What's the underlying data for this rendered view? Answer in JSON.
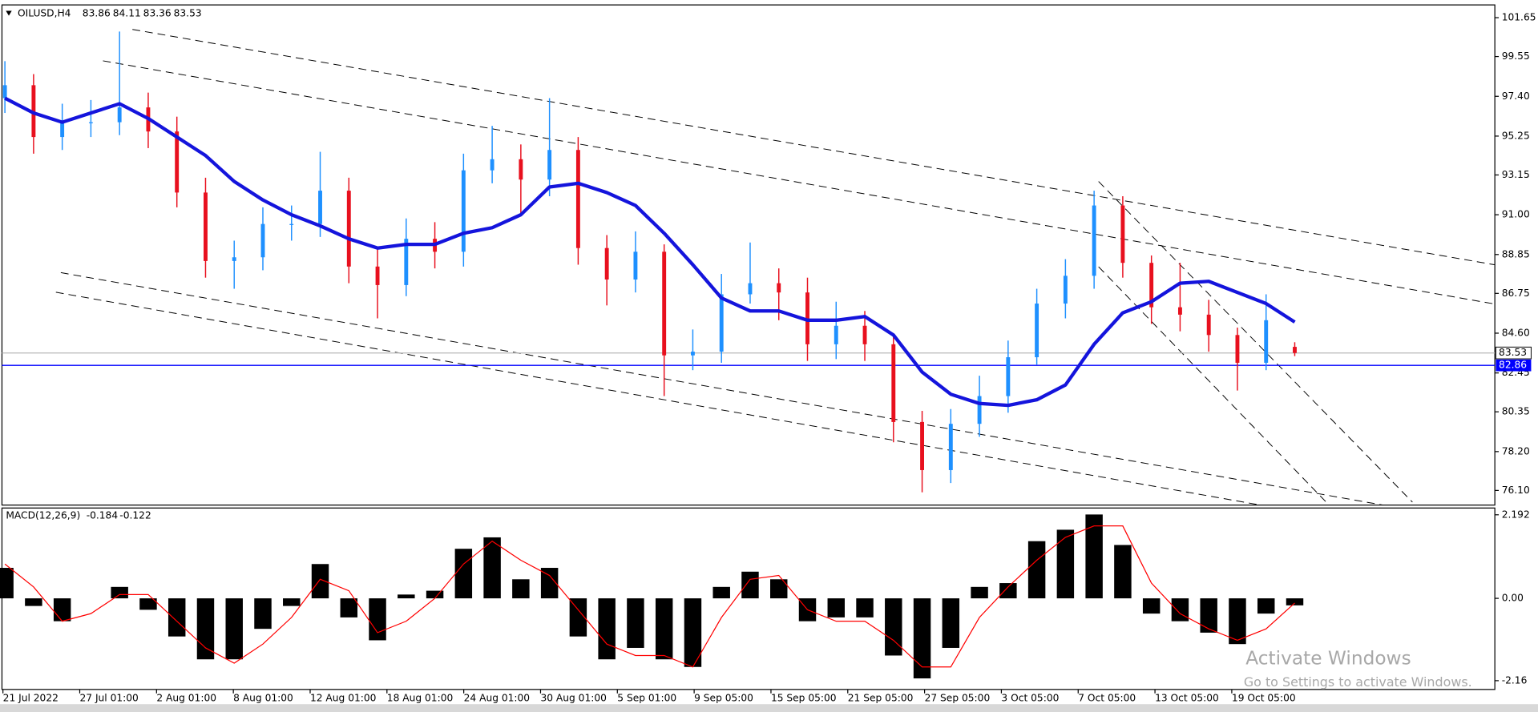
{
  "chart_data": [
    {
      "type": "candlestick",
      "symbol": "OILUSD,H4",
      "open": [
        97.3,
        98.0,
        95.2,
        96.0,
        96.0,
        96.8,
        95.5,
        92.2,
        88.5,
        88.7,
        90.5,
        90.5,
        92.3,
        88.2,
        87.2,
        89.7,
        89.0,
        93.4,
        94.0,
        92.9,
        94.5,
        89.2,
        87.5,
        89.0,
        83.4,
        83.6,
        86.7,
        87.3,
        86.8,
        84.0,
        85.0,
        84.0,
        79.8,
        77.2,
        79.7,
        81.2,
        83.3,
        86.2,
        87.7,
        91.5,
        88.4,
        86.0,
        85.6,
        84.5,
        83.0,
        83.86
      ],
      "high": [
        99.3,
        98.6,
        97.0,
        97.2,
        100.9,
        97.6,
        96.3,
        93.0,
        89.6,
        91.4,
        91.5,
        94.4,
        93.0,
        89.2,
        90.8,
        90.6,
        94.3,
        95.8,
        94.8,
        97.3,
        95.2,
        89.9,
        90.1,
        89.4,
        84.8,
        87.8,
        89.5,
        88.1,
        87.6,
        86.3,
        85.8,
        84.6,
        80.4,
        80.5,
        82.3,
        84.2,
        87.0,
        88.6,
        92.3,
        92.0,
        88.8,
        88.4,
        86.4,
        84.9,
        86.7,
        84.11
      ],
      "low": [
        96.5,
        94.3,
        94.5,
        95.2,
        95.3,
        94.6,
        91.4,
        87.6,
        87.0,
        88.0,
        89.6,
        89.8,
        87.3,
        85.4,
        86.6,
        88.1,
        88.2,
        92.7,
        91.0,
        92.0,
        88.3,
        86.1,
        86.8,
        81.2,
        82.6,
        83.0,
        86.2,
        85.3,
        83.1,
        83.2,
        83.1,
        78.7,
        76.0,
        76.5,
        79.0,
        80.3,
        82.9,
        85.4,
        87.0,
        87.6,
        85.1,
        84.7,
        83.6,
        81.5,
        82.6,
        83.36
      ],
      "close": [
        98.0,
        95.2,
        96.0,
        96.0,
        96.8,
        95.5,
        92.2,
        88.5,
        88.7,
        90.5,
        90.5,
        92.3,
        88.2,
        87.2,
        89.7,
        89.0,
        93.4,
        94.0,
        92.9,
        94.5,
        89.2,
        87.5,
        89.0,
        83.4,
        83.6,
        86.7,
        87.3,
        86.8,
        84.0,
        85.0,
        84.0,
        79.8,
        77.2,
        79.7,
        81.2,
        83.3,
        86.2,
        87.7,
        91.5,
        88.4,
        86.0,
        85.6,
        84.5,
        83.0,
        85.3,
        83.53
      ],
      "up_color": "#1e90ff",
      "down_color": "#e8101e",
      "ma": {
        "color": "#1414dc",
        "values": [
          97.3,
          96.5,
          96.0,
          96.5,
          97.0,
          96.2,
          95.2,
          94.2,
          92.8,
          91.8,
          91.0,
          90.4,
          89.7,
          89.2,
          89.4,
          89.4,
          90.0,
          90.3,
          91.0,
          92.5,
          92.7,
          92.2,
          91.5,
          90.0,
          88.3,
          86.5,
          85.8,
          85.8,
          85.3,
          85.3,
          85.5,
          84.5,
          82.5,
          81.3,
          80.8,
          80.7,
          81.0,
          81.8,
          84.0,
          85.7,
          86.3,
          87.3,
          87.4,
          86.8,
          86.2,
          85.2
        ]
      },
      "hline": {
        "value": 82.86,
        "color": "#0000ff"
      },
      "ylim": [
        75.31,
        102.34
      ],
      "yticks": [
        101.65,
        99.55,
        {
          "value": 97.4,
          "label": "97.40"
        },
        95.25,
        93.15,
        {
          "value": 91,
          "label": "91.00"
        },
        88.85,
        86.75,
        {
          "value": 84.6,
          "label": "84.60"
        },
        82.45,
        80.35,
        {
          "value": 78.2,
          "label": "78.20"
        },
        {
          "value": 76.1,
          "label": "76.10"
        }
      ],
      "x_labels": [
        "21 Jul 2022",
        "27 Jul 01:00",
        "2 Aug 01:00",
        "8 Aug 01:00",
        "12 Aug 01:00",
        "18 Aug 01:00",
        "24 Aug 01:00",
        "30 Aug 01:00",
        "5 Sep 01:00",
        "9 Sep 05:00",
        "15 Sep 05:00",
        "21 Sep 05:00",
        "27 Sep 05:00",
        "3 Oct 05:00",
        "7 Oct 05:00",
        "13 Oct 05:00",
        "19 Oct 05:00"
      ]
    },
    {
      "type": "macd",
      "title": "MACD(12,26,9)",
      "values": [
        0.8,
        -0.2,
        -0.6,
        0.0,
        0.3,
        -0.3,
        -1.0,
        -1.6,
        -1.6,
        -0.8,
        -0.2,
        0.9,
        -0.5,
        -1.1,
        0.1,
        0.2,
        1.3,
        1.6,
        0.5,
        0.8,
        -1.0,
        -1.6,
        -1.3,
        -1.6,
        -1.8,
        0.3,
        0.7,
        0.5,
        -0.6,
        -0.5,
        -0.5,
        -1.5,
        -2.1,
        -1.3,
        0.3,
        0.4,
        1.5,
        1.8,
        2.2,
        1.4,
        -0.4,
        -0.6,
        -0.9,
        -1.2,
        -0.4,
        -0.184
      ],
      "signal": [
        0.9,
        0.3,
        -0.6,
        -0.4,
        0.1,
        0.1,
        -0.6,
        -1.3,
        -1.7,
        -1.2,
        -0.5,
        0.5,
        0.2,
        -0.9,
        -0.6,
        0.0,
        0.9,
        1.5,
        1.0,
        0.6,
        -0.3,
        -1.2,
        -1.5,
        -1.5,
        -1.8,
        -0.5,
        0.5,
        0.6,
        -0.3,
        -0.6,
        -0.6,
        -1.1,
        -1.8,
        -1.8,
        -0.5,
        0.3,
        1.0,
        1.6,
        1.9,
        1.9,
        0.4,
        -0.4,
        -0.8,
        -1.1,
        -0.8,
        -0.122
      ],
      "color": "#000000",
      "signal_color": "#ff0000",
      "ylim": [
        -2.39,
        2.37
      ],
      "yticks": [
        2.192,
        {
          "value": 0,
          "label": "0.00"
        },
        -2.16
      ]
    }
  ],
  "watermark": {
    "title": "Activate Windows",
    "subtitle": "Go to Settings to activate Windows."
  }
}
